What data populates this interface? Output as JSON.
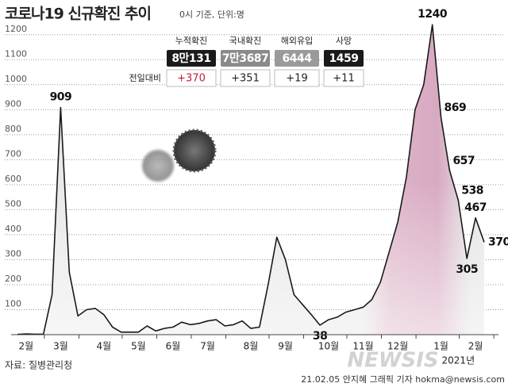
{
  "chart_data": {
    "type": "line",
    "title": "코로나19 신규확진 추이",
    "subtitle": "0시 기준, 단위:명",
    "categories": [
      null,
      "2월",
      null,
      null,
      null,
      "3월",
      null,
      null,
      null,
      null,
      "4월",
      null,
      null,
      null,
      "5월",
      null,
      null,
      null,
      "6월",
      null,
      null,
      null,
      "7월",
      null,
      null,
      null,
      null,
      "8월",
      null,
      null,
      null,
      "9월",
      null,
      null,
      null,
      null,
      "10월",
      null,
      null,
      null,
      "11월",
      null,
      null,
      null,
      "12월",
      null,
      null,
      null,
      null,
      "1월",
      null,
      null,
      null,
      "2월",
      null
    ],
    "values": [
      1,
      3,
      2,
      2,
      160,
      909,
      250,
      75,
      100,
      105,
      80,
      30,
      10,
      10,
      10,
      35,
      15,
      25,
      30,
      50,
      40,
      45,
      55,
      60,
      35,
      40,
      55,
      25,
      30,
      200,
      390,
      300,
      160,
      120,
      80,
      38,
      60,
      70,
      90,
      100,
      110,
      140,
      210,
      330,
      450,
      630,
      900,
      1000,
      1240,
      869,
      657,
      538,
      305,
      467,
      370
    ],
    "value_labels": [
      null,
      null,
      null,
      null,
      null,
      "909",
      null,
      null,
      null,
      null,
      null,
      null,
      null,
      null,
      null,
      null,
      null,
      null,
      null,
      null,
      null,
      null,
      null,
      null,
      null,
      null,
      null,
      null,
      null,
      null,
      null,
      null,
      null,
      null,
      null,
      "38",
      null,
      null,
      null,
      null,
      null,
      null,
      null,
      null,
      null,
      null,
      null,
      null,
      "1240",
      "869",
      "657",
      "538",
      "305",
      "467",
      "370"
    ],
    "color": "#1a1a1a",
    "ylim": [
      0,
      1250
    ],
    "yticks": [
      100,
      200,
      300,
      400,
      500,
      600,
      700,
      800,
      900,
      1000,
      1100,
      1200
    ],
    "grid": true,
    "year_label": "2021년"
  },
  "stats": {
    "headers": [
      "누적확진",
      "국내확진",
      "해외유입",
      "사망"
    ],
    "totals": [
      "8만131",
      "7만3687",
      "6444",
      "1459"
    ],
    "change_label": "전일대비",
    "changes": [
      "+370",
      "+351",
      "+19",
      "+11"
    ]
  },
  "source": "자료: 질병관리청",
  "credit": "21.02.05 안지혜 그래픽 기자 hokma@newsis.com",
  "watermark": "NEWSIS"
}
